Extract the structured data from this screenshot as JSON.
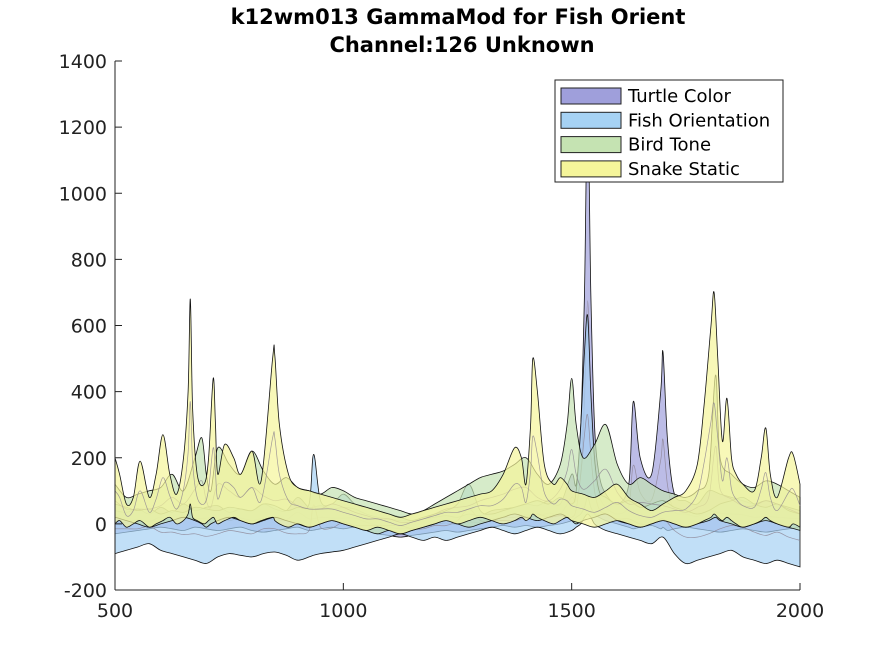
{
  "chart_data": {
    "type": "area",
    "title": "k12wm013 GammaMod for Fish Orient",
    "subtitle": "Channel:126 Unknown",
    "xlabel": "",
    "ylabel": "",
    "xlim": [
      500,
      2000
    ],
    "ylim": [
      -200,
      1400
    ],
    "xticks": [
      500,
      1000,
      1500,
      2000
    ],
    "yticks": [
      -200,
      0,
      200,
      400,
      600,
      800,
      1000,
      1200,
      1400
    ],
    "grid": false,
    "legend_position": "top-right",
    "series": [
      {
        "name": "Turtle Color",
        "color": "#9f9fdb",
        "x": [
          500,
          525,
          550,
          575,
          600,
          625,
          650,
          675,
          700,
          725,
          750,
          775,
          800,
          825,
          850,
          875,
          900,
          925,
          950,
          975,
          1000,
          1025,
          1050,
          1075,
          1100,
          1125,
          1150,
          1175,
          1200,
          1225,
          1250,
          1275,
          1300,
          1325,
          1350,
          1375,
          1400,
          1425,
          1450,
          1475,
          1500,
          1510,
          1520,
          1528,
          1535,
          1542,
          1550,
          1560,
          1575,
          1600,
          1625,
          1635,
          1650,
          1675,
          1695,
          1700,
          1710,
          1725,
          1750,
          1775,
          1800,
          1825,
          1850,
          1875,
          1900,
          1925,
          1950,
          1975,
          2000
        ],
        "upper": [
          40,
          35,
          45,
          30,
          50,
          35,
          60,
          40,
          50,
          55,
          35,
          45,
          40,
          60,
          45,
          40,
          80,
          50,
          55,
          45,
          50,
          45,
          30,
          20,
          15,
          10,
          10,
          15,
          20,
          25,
          20,
          30,
          25,
          40,
          45,
          50,
          60,
          55,
          70,
          60,
          150,
          120,
          300,
          700,
          1270,
          700,
          300,
          150,
          90,
          60,
          120,
          370,
          200,
          150,
          400,
          520,
          250,
          90,
          70,
          60,
          100,
          90,
          80,
          70,
          60,
          70,
          60,
          50,
          40
        ],
        "lower": [
          -30,
          -25,
          -20,
          -15,
          -10,
          -15,
          -20,
          -10,
          -15,
          -20,
          -15,
          -10,
          -20,
          -25,
          -20,
          -15,
          -10,
          -20,
          -15,
          -10,
          -15,
          -10,
          -20,
          -30,
          -35,
          -40,
          -35,
          -30,
          -25,
          -20,
          -25,
          -20,
          -15,
          -10,
          -5,
          -10,
          -5,
          -10,
          -5,
          0,
          10,
          20,
          30,
          50,
          80,
          50,
          30,
          20,
          10,
          0,
          -10,
          -15,
          -10,
          -5,
          -15,
          -10,
          -20,
          -15,
          -10,
          -15,
          -20,
          -25,
          -20,
          -15,
          -20,
          -25,
          -20,
          -15,
          -10
        ]
      },
      {
        "name": "Fish Orientation",
        "color": "#a6d2f4",
        "x": [
          500,
          525,
          550,
          575,
          600,
          625,
          650,
          675,
          700,
          725,
          750,
          775,
          800,
          825,
          850,
          875,
          900,
          925,
          935,
          950,
          975,
          1000,
          1025,
          1050,
          1075,
          1100,
          1125,
          1150,
          1175,
          1200,
          1225,
          1250,
          1275,
          1300,
          1325,
          1350,
          1375,
          1400,
          1425,
          1450,
          1475,
          1500,
          1510,
          1520,
          1528,
          1535,
          1542,
          1550,
          1560,
          1575,
          1600,
          1625,
          1650,
          1675,
          1700,
          1725,
          1750,
          1775,
          1800,
          1825,
          1850,
          1875,
          1900,
          1925,
          1950,
          1975,
          2000
        ],
        "upper": [
          60,
          50,
          40,
          45,
          30,
          40,
          35,
          50,
          45,
          40,
          50,
          45,
          40,
          60,
          55,
          40,
          50,
          60,
          210,
          70,
          60,
          90,
          60,
          50,
          40,
          30,
          20,
          10,
          20,
          30,
          40,
          60,
          120,
          40,
          30,
          40,
          50,
          60,
          70,
          60,
          80,
          60,
          100,
          300,
          520,
          630,
          400,
          200,
          100,
          80,
          60,
          70,
          50,
          60,
          70,
          50,
          40,
          30,
          40,
          60,
          70,
          80,
          60,
          50,
          60,
          40,
          30
        ],
        "lower": [
          -90,
          -80,
          -70,
          -60,
          -80,
          -90,
          -100,
          -110,
          -120,
          -100,
          -90,
          -95,
          -100,
          -90,
          -85,
          -95,
          -110,
          -100,
          -95,
          -90,
          -85,
          -80,
          -70,
          -60,
          -50,
          -40,
          -30,
          -40,
          -50,
          -40,
          -50,
          -40,
          -30,
          -20,
          -10,
          -20,
          -30,
          -20,
          -10,
          -20,
          -30,
          -20,
          -10,
          0,
          20,
          30,
          20,
          0,
          -10,
          -20,
          -30,
          -40,
          -50,
          -60,
          -40,
          -90,
          -120,
          -110,
          -100,
          -90,
          -80,
          -100,
          -110,
          -120,
          -110,
          -120,
          -130
        ]
      },
      {
        "name": "Bird Tone",
        "color": "#c5e3b2",
        "x": [
          500,
          525,
          550,
          575,
          600,
          625,
          650,
          675,
          690,
          700,
          710,
          725,
          750,
          775,
          800,
          825,
          850,
          875,
          900,
          925,
          950,
          975,
          1000,
          1025,
          1050,
          1075,
          1100,
          1125,
          1150,
          1175,
          1200,
          1225,
          1250,
          1275,
          1300,
          1325,
          1350,
          1375,
          1400,
          1425,
          1450,
          1475,
          1490,
          1500,
          1510,
          1525,
          1550,
          1575,
          1600,
          1625,
          1650,
          1675,
          1700,
          1725,
          1750,
          1775,
          1800,
          1815,
          1825,
          1850,
          1875,
          1900,
          1925,
          1950,
          1975,
          2000
        ],
        "upper": [
          120,
          80,
          90,
          100,
          110,
          150,
          100,
          200,
          260,
          150,
          100,
          230,
          180,
          150,
          220,
          160,
          120,
          140,
          110,
          100,
          90,
          110,
          100,
          80,
          70,
          60,
          50,
          40,
          30,
          40,
          60,
          80,
          100,
          120,
          140,
          150,
          160,
          180,
          200,
          150,
          120,
          180,
          300,
          440,
          300,
          200,
          240,
          300,
          180,
          120,
          140,
          120,
          100,
          90,
          80,
          100,
          150,
          450,
          200,
          150,
          120,
          110,
          130,
          120,
          100,
          80
        ],
        "lower": [
          20,
          10,
          0,
          -10,
          0,
          10,
          20,
          10,
          0,
          -10,
          0,
          10,
          20,
          10,
          0,
          10,
          20,
          10,
          0,
          -10,
          0,
          10,
          0,
          -10,
          -20,
          -30,
          -20,
          -30,
          -20,
          -10,
          0,
          10,
          0,
          -10,
          0,
          10,
          20,
          30,
          20,
          10,
          20,
          30,
          20,
          10,
          0,
          10,
          20,
          30,
          10,
          0,
          -10,
          0,
          10,
          0,
          -10,
          0,
          10,
          20,
          10,
          0,
          -10,
          0,
          10,
          0,
          -10,
          -20
        ]
      },
      {
        "name": "Snake Static",
        "color": "#f5f59a",
        "x": [
          500,
          510,
          525,
          540,
          555,
          575,
          590,
          605,
          620,
          635,
          650,
          660,
          665,
          670,
          680,
          695,
          705,
          715,
          720,
          725,
          740,
          760,
          775,
          800,
          820,
          845,
          850,
          860,
          880,
          900,
          925,
          950,
          975,
          1000,
          1025,
          1050,
          1075,
          1100,
          1125,
          1150,
          1175,
          1200,
          1225,
          1250,
          1275,
          1300,
          1325,
          1350,
          1375,
          1390,
          1400,
          1410,
          1415,
          1425,
          1440,
          1460,
          1475,
          1490,
          1500,
          1525,
          1550,
          1575,
          1600,
          1625,
          1650,
          1675,
          1700,
          1725,
          1750,
          1775,
          1790,
          1805,
          1812,
          1820,
          1830,
          1840,
          1850,
          1860,
          1875,
          1900,
          1915,
          1925,
          1935,
          1950,
          1975,
          1985,
          2000
        ],
        "upper": [
          200,
          150,
          60,
          80,
          190,
          80,
          150,
          270,
          150,
          90,
          200,
          400,
          680,
          350,
          150,
          120,
          200,
          440,
          300,
          150,
          240,
          200,
          150,
          220,
          130,
          500,
          510,
          300,
          150,
          110,
          100,
          90,
          80,
          70,
          60,
          50,
          40,
          30,
          20,
          30,
          40,
          50,
          60,
          70,
          80,
          90,
          100,
          150,
          230,
          200,
          120,
          300,
          500,
          400,
          180,
          120,
          140,
          120,
          100,
          90,
          80,
          100,
          120,
          80,
          60,
          40,
          60,
          80,
          100,
          180,
          360,
          600,
          700,
          500,
          250,
          380,
          200,
          150,
          120,
          100,
          200,
          290,
          150,
          80,
          200,
          210,
          120
        ],
        "lower": [
          0,
          10,
          -10,
          0,
          10,
          -10,
          0,
          10,
          20,
          0,
          10,
          30,
          60,
          20,
          10,
          0,
          10,
          20,
          10,
          0,
          10,
          20,
          10,
          0,
          10,
          20,
          10,
          0,
          -10,
          0,
          -10,
          0,
          10,
          0,
          -10,
          -20,
          -10,
          -20,
          -30,
          -20,
          -10,
          0,
          10,
          0,
          10,
          20,
          10,
          0,
          10,
          20,
          10,
          20,
          30,
          20,
          10,
          0,
          10,
          20,
          10,
          0,
          -10,
          0,
          10,
          0,
          -10,
          0,
          10,
          0,
          -10,
          0,
          10,
          20,
          30,
          20,
          10,
          20,
          10,
          0,
          -10,
          0,
          10,
          20,
          10,
          0,
          -10,
          0,
          -10
        ]
      }
    ]
  }
}
